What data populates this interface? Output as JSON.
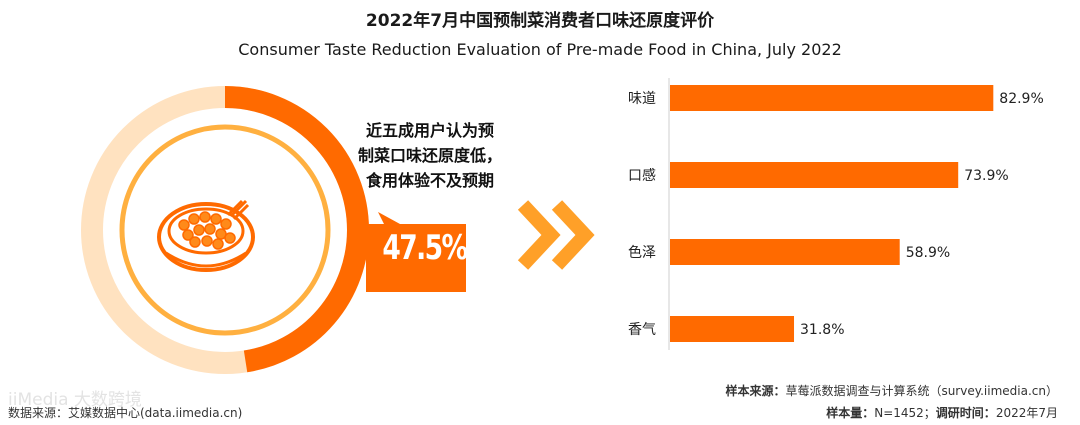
{
  "title": "2022年7月中国预制菜消费者口味还原度评价",
  "subtitle": "Consumer Taste Reduction Evaluation of Pre-made Food in China, July 2022",
  "callout": {
    "lines": [
      "近五成用户认为预",
      "制菜口味还原度低，",
      "食用体验不及预期"
    ],
    "value": "47.5%"
  },
  "colors": {
    "accent": "#ff6a00",
    "accent_light": "#ffb040",
    "ring_light": "#ffe2c0"
  },
  "chart_data": {
    "type": "bar",
    "orientation": "horizontal",
    "categories": [
      "味道",
      "口感",
      "色泽",
      "香气"
    ],
    "values": [
      82.9,
      73.9,
      58.9,
      31.8
    ],
    "value_labels": [
      "82.9%",
      "73.9%",
      "58.9%",
      "31.8%"
    ],
    "xlim": [
      0,
      100
    ]
  },
  "footer": {
    "sample_source_label": "样本来源：",
    "sample_source": "草莓派数据调查与计算系统（survey.iimedia.cn）",
    "sample_size_label": "样本量：",
    "sample_size": "N=1452；",
    "survey_time_label": "调研时间：",
    "survey_time": "2022年7月",
    "data_source": "数据来源：艾媒数据中心(data.iimedia.cn)",
    "watermark": "iiMedia 大数跨境"
  }
}
